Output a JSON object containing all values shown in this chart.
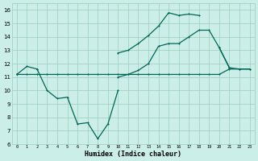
{
  "xlabel": "Humidex (Indice chaleur)",
  "x": [
    0,
    1,
    2,
    3,
    4,
    5,
    6,
    7,
    8,
    9,
    10,
    11,
    12,
    13,
    14,
    15,
    16,
    17,
    18,
    19,
    20,
    21,
    22,
    23
  ],
  "line_bottom": [
    11.2,
    11.2,
    11.2,
    11.2,
    11.2,
    11.2,
    11.2,
    11.2,
    11.2,
    11.2,
    11.2,
    11.2,
    11.2,
    11.2,
    11.2,
    11.2,
    11.2,
    11.2,
    11.2,
    11.2,
    11.2,
    11.6,
    11.6,
    11.6
  ],
  "line_dip": [
    11.2,
    11.8,
    11.6,
    10.0,
    9.4,
    9.5,
    7.5,
    7.6,
    6.4,
    7.5,
    10.0,
    null,
    null,
    null,
    null,
    null,
    null,
    null,
    null,
    null,
    null,
    null,
    null,
    null
  ],
  "line_mid": [
    11.2,
    null,
    11.6,
    null,
    null,
    null,
    null,
    null,
    null,
    null,
    11.0,
    11.2,
    11.5,
    12.0,
    13.3,
    13.5,
    13.5,
    14.0,
    14.5,
    14.5,
    13.2,
    11.7,
    11.6,
    11.6
  ],
  "line_top": [
    11.2,
    null,
    11.6,
    null,
    null,
    null,
    null,
    null,
    null,
    null,
    12.8,
    13.0,
    13.5,
    14.1,
    14.8,
    15.8,
    15.6,
    15.7,
    15.6,
    null,
    13.2,
    11.7,
    null,
    null
  ],
  "bg_color": "#cceee8",
  "grid_color": "#99ccbb",
  "line_color": "#006655",
  "ylim": [
    6,
    16.5
  ],
  "xlim": [
    -0.5,
    23.5
  ],
  "yticks": [
    6,
    7,
    8,
    9,
    10,
    11,
    12,
    13,
    14,
    15,
    16
  ],
  "xticks": [
    0,
    1,
    2,
    3,
    4,
    5,
    6,
    7,
    8,
    9,
    10,
    11,
    12,
    13,
    14,
    15,
    16,
    17,
    18,
    19,
    20,
    21,
    22,
    23
  ],
  "xtick_labels": [
    "0",
    "1",
    "2",
    "3",
    "4",
    "5",
    "6",
    "7",
    "8",
    "9",
    "10",
    "11",
    "12",
    "13",
    "14",
    "15",
    "16",
    "17",
    "18",
    "19",
    "20",
    "21",
    "22",
    "23"
  ]
}
